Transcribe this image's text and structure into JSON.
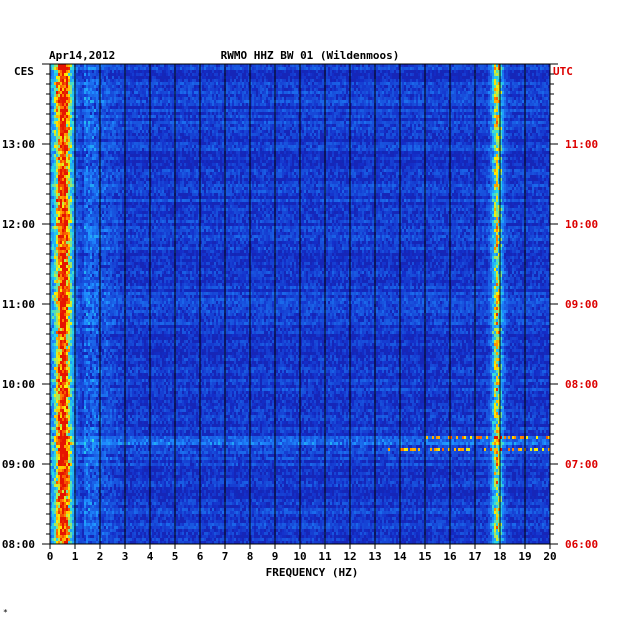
{
  "chart_data": {
    "type": "heatmap",
    "date": "Apr14,2012",
    "title": "RWMO HHZ BW 01 (Wildenmoos)",
    "xlabel": "FREQUENCY (HZ)",
    "left_timezone": "CES",
    "right_timezone": "UTC",
    "x_ticks": [
      "0",
      "1",
      "2",
      "3",
      "4",
      "5",
      "6",
      "7",
      "8",
      "9",
      "10",
      "11",
      "12",
      "13",
      "14",
      "15",
      "16",
      "17",
      "18",
      "19",
      "20"
    ],
    "xlim": [
      0,
      20
    ],
    "left_time_labels": [
      "13:00",
      "12:00",
      "11:00",
      "10:00",
      "09:00",
      "08:00"
    ],
    "right_time_labels": [
      "11:00",
      "10:00",
      "09:00",
      "08:00",
      "07:00",
      "06:00"
    ],
    "ylim_left": [
      "08:00",
      "13:50"
    ],
    "features": [
      {
        "name": "low-frequency band",
        "freq_range_hz": [
          0.2,
          1.2
        ],
        "intensity": "high"
      },
      {
        "name": "17.8 Hz band",
        "freq_range_hz": [
          17.4,
          18.2
        ],
        "intensity": "medium"
      },
      {
        "name": "broadband event",
        "time_left": "09:14",
        "intensity": "high"
      }
    ],
    "colors": {
      "background": "#1626b8",
      "low": "#0a14a0",
      "mid": "#1e90ff",
      "high": "#ffff00",
      "peak": "#ff2000",
      "left_axis": "#000000",
      "right_axis": "#dd0000"
    },
    "footer_mark": "*"
  }
}
